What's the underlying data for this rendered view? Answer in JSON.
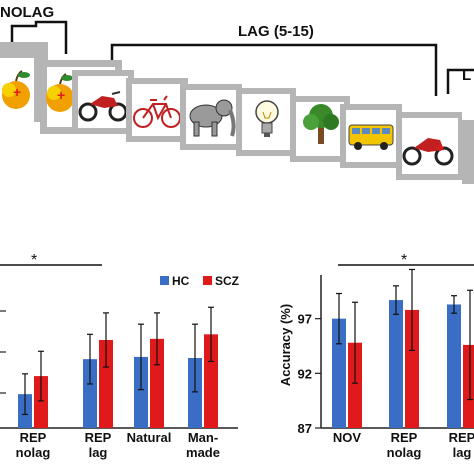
{
  "top_panel": {
    "nolag_label": "NOLAG",
    "lag_label": "LAG (5-15)",
    "lag_right_label": "L",
    "cards": [
      {
        "name": "apple",
        "has_cross": true
      },
      {
        "name": "apple",
        "has_cross": true
      },
      {
        "name": "motorcycle",
        "has_cross": false
      },
      {
        "name": "bicycle",
        "has_cross": false
      },
      {
        "name": "elephant",
        "has_cross": false
      },
      {
        "name": "light-bulb",
        "has_cross": false
      },
      {
        "name": "tree",
        "has_cross": false
      },
      {
        "name": "bus",
        "has_cross": false
      },
      {
        "name": "motorcycle",
        "has_cross": true
      }
    ]
  },
  "colors": {
    "hc": "#3a6ec4",
    "scz": "#e01a1a",
    "card_frame": "#b5b5b5",
    "axis": "#222222"
  },
  "significance_star": "*",
  "chart_data": [
    {
      "type": "bar",
      "categories": [
        "REP\nnolag",
        "REP\nlag",
        "Natural",
        "Man-\nmade"
      ],
      "legend": {
        "placement": "top-right"
      },
      "series": [
        {
          "name": "HC",
          "values": [
            91.0,
            94.1,
            94.3,
            94.2
          ],
          "error": [
            1.8,
            2.2,
            2.9,
            3.0
          ]
        },
        {
          "name": "SCZ",
          "values": [
            92.6,
            95.8,
            95.9,
            96.3
          ],
          "error": [
            2.2,
            2.4,
            2.3,
            2.4
          ]
        }
      ],
      "ylim": [
        88,
        102
      ]
    },
    {
      "type": "bar",
      "categories": [
        "NOV",
        "REP\nnolag",
        "REP\nlag"
      ],
      "ylabel": "Accuracy (%)",
      "yticks": [
        87,
        92,
        97
      ],
      "ylim": [
        87,
        102
      ],
      "series": [
        {
          "name": "HC",
          "values": [
            97.0,
            98.7,
            98.3
          ],
          "error": [
            2.3,
            1.3,
            0.8
          ]
        },
        {
          "name": "SCZ",
          "values": [
            94.8,
            97.8,
            94.6
          ],
          "error": [
            3.7,
            3.7,
            5.0
          ]
        }
      ]
    }
  ]
}
